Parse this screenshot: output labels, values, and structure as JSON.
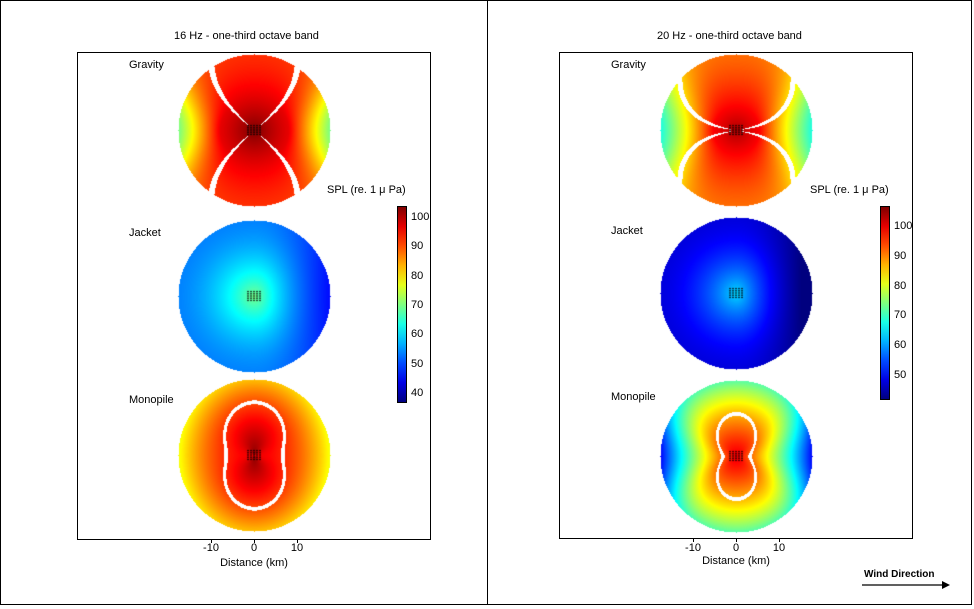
{
  "chart_data": [
    {
      "type": "heatmap",
      "title": "16 Hz - one-third octave band",
      "xlabel": "Distance (km)",
      "x_ticks": [
        "-10",
        "0",
        "10"
      ],
      "subplots": [
        {
          "label": "Gravity",
          "pattern": "gravity",
          "center_spl": 104,
          "edge_range": [
            72,
            95
          ]
        },
        {
          "label": "Jacket",
          "pattern": "jacket",
          "center_spl": 70,
          "edge_range": [
            45,
            60
          ]
        },
        {
          "label": "Monopile",
          "pattern": "monopile",
          "center_spl": 100,
          "edge_range": [
            78,
            90
          ]
        }
      ],
      "colorbar": {
        "title": "SPL (re. 1 μ Pa)",
        "ticks": [
          "100",
          "90",
          "80",
          "70",
          "60",
          "50",
          "40"
        ],
        "range": [
          37,
          104
        ]
      }
    },
    {
      "type": "heatmap",
      "title": "20 Hz - one-third octave band",
      "xlabel": "Distance (km)",
      "x_ticks": [
        "-10",
        "0",
        "10"
      ],
      "subplots": [
        {
          "label": "Gravity",
          "pattern": "gravity20",
          "center_spl": 104,
          "edge_range": [
            72,
            95
          ]
        },
        {
          "label": "Jacket",
          "pattern": "jacket20",
          "center_spl": 65,
          "edge_range": [
            42,
            55
          ]
        },
        {
          "label": "Monopile",
          "pattern": "monopile20",
          "center_spl": 95,
          "edge_range": [
            62,
            85
          ]
        }
      ],
      "colorbar": {
        "title": "SPL (re. 1 μ Pa)",
        "ticks": [
          "100",
          "90",
          "80",
          "70",
          "60",
          "50"
        ],
        "range": [
          42,
          107
        ]
      }
    }
  ],
  "annotation": {
    "wind_label": "Wind Direction"
  }
}
